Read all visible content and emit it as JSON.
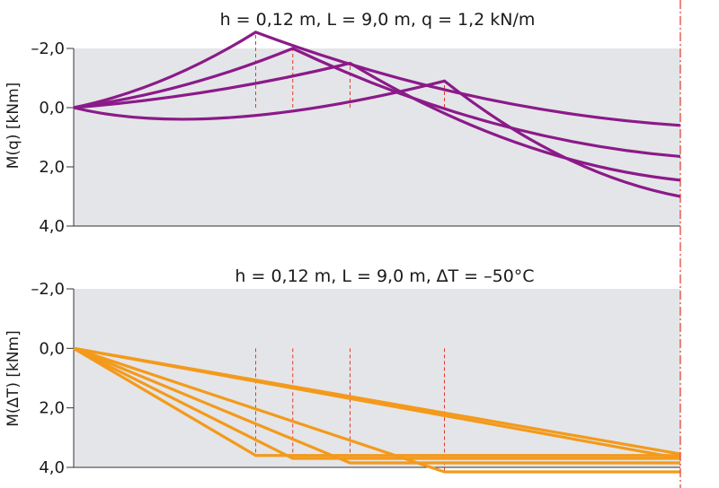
{
  "chart_data": [
    {
      "type": "line",
      "title": "h = 0,12 m, L = 9,0 m, q = 1,2 kN/m",
      "xlabel": "",
      "ylabel": "M(q) [kNm]",
      "y_inverted": true,
      "ylim": [
        -2.0,
        4.0
      ],
      "xlim": [
        0,
        9.0
      ],
      "yticks": [
        -2.0,
        0.0,
        2.0,
        4.0
      ],
      "ytick_labels": [
        "–2,0",
        "0,0",
        "2,0",
        "4,0"
      ],
      "grid": false,
      "color": "#8b1a89",
      "series": [
        {
          "x": [
            0,
            2.7,
            9.0
          ],
          "y": [
            0.0,
            -2.55,
            0.6
          ]
        },
        {
          "x": [
            0,
            3.25,
            9.0
          ],
          "y": [
            0.0,
            -2.0,
            1.65
          ]
        },
        {
          "x": [
            0,
            4.1,
            9.0
          ],
          "y": [
            0.0,
            -1.5,
            2.45
          ]
        },
        {
          "x": [
            0,
            2.0,
            5.5,
            9.0
          ],
          "y": [
            0.0,
            0.8,
            -0.9,
            3.0
          ]
        }
      ],
      "markers_x": [
        2.7,
        3.25,
        4.1,
        5.5
      ]
    },
    {
      "type": "line",
      "title": "h = 0,12 m, L = 9,0 m, ∆T = –50°C",
      "xlabel": "",
      "ylabel": "M(∆T) [kNm]",
      "y_inverted": true,
      "ylim": [
        -2.0,
        4.0
      ],
      "xlim": [
        0,
        9.0
      ],
      "yticks": [
        -2.0,
        0.0,
        2.0,
        4.0
      ],
      "ytick_labels": [
        "–2,0",
        "0,0",
        "2,0",
        "4,0"
      ],
      "grid": false,
      "color": "#f39a1c",
      "series": [
        {
          "x": [
            0,
            2.7,
            9.0
          ],
          "y": [
            0.0,
            3.6,
            3.6
          ]
        },
        {
          "x": [
            0,
            3.25,
            9.0
          ],
          "y": [
            0.0,
            3.7,
            3.7
          ]
        },
        {
          "x": [
            0,
            4.1,
            9.0
          ],
          "y": [
            0.0,
            3.85,
            3.85
          ]
        },
        {
          "x": [
            0,
            5.5,
            9.0
          ],
          "y": [
            0.0,
            4.15,
            4.15
          ]
        },
        {
          "x": [
            0,
            9.0
          ],
          "y": [
            0.0,
            3.55
          ]
        },
        {
          "x": [
            0,
            9.0
          ],
          "y": [
            0.0,
            3.7
          ]
        }
      ],
      "markers_x": [
        2.7,
        3.25,
        4.1,
        5.5
      ]
    }
  ],
  "colors": {
    "plot_background": "#e4e5e8",
    "axis": "#333333",
    "marker_line": "#e03a2e",
    "right_edge_line": "#e03a2e"
  }
}
